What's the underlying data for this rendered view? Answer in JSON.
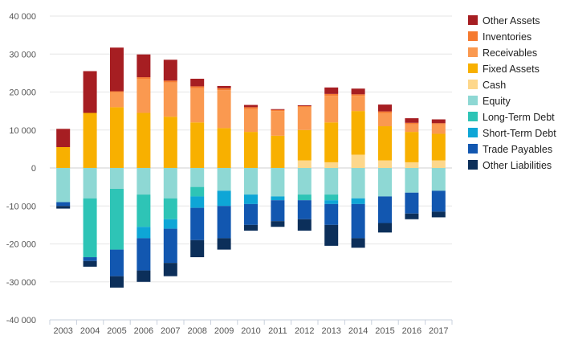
{
  "chart_data": {
    "type": "bar",
    "stacked": true,
    "title": "",
    "xlabel": "",
    "ylabel": "",
    "ylim": [
      -40000,
      40000
    ],
    "yticks": [
      -40000,
      -30000,
      -20000,
      -10000,
      0,
      10000,
      20000,
      30000,
      40000
    ],
    "ytick_labels": [
      "-40 000",
      "-30 000",
      "-20 000",
      "-10 000",
      "0",
      "10 000",
      "20 000",
      "30 000",
      "40 000"
    ],
    "grid": true,
    "legend_position": "right",
    "categories": [
      "2003",
      "2004",
      "2005",
      "2006",
      "2007",
      "2008",
      "2009",
      "2010",
      "2011",
      "2012",
      "2013",
      "2014",
      "2015",
      "2016",
      "2017"
    ],
    "series": [
      {
        "name": "Cash",
        "color": "#FDD78B",
        "values": [
          0,
          0,
          0,
          0,
          0,
          0,
          0,
          0,
          0,
          2000,
          1500,
          3500,
          2000,
          1500,
          2000
        ]
      },
      {
        "name": "Fixed Assets",
        "color": "#F8B000",
        "values": [
          5500,
          14500,
          16000,
          14500,
          13500,
          12000,
          10500,
          9500,
          8500,
          8000,
          10500,
          11500,
          9000,
          8000,
          7000
        ]
      },
      {
        "name": "Receivables",
        "color": "#FA9950",
        "values": [
          0,
          0,
          4000,
          9000,
          9000,
          9000,
          10000,
          6000,
          6500,
          6000,
          7000,
          4000,
          3500,
          2000,
          2500
        ]
      },
      {
        "name": "Inventories",
        "color": "#F57A30",
        "values": [
          0,
          0,
          200,
          400,
          500,
          500,
          500,
          500,
          300,
          300,
          500,
          400,
          400,
          400,
          300
        ]
      },
      {
        "name": "Other Assets",
        "color": "#A61E22",
        "values": [
          4800,
          11000,
          11500,
          6000,
          5500,
          2000,
          600,
          600,
          200,
          200,
          1700,
          1500,
          1800,
          1200,
          1000
        ]
      },
      {
        "name": "Equity",
        "color": "#8ED8D4",
        "values": [
          -9000,
          -8000,
          -5500,
          -7000,
          -8000,
          -5000,
          -6000,
          -7000,
          -7500,
          -7000,
          -7000,
          -8000,
          -7500,
          -6500,
          -6000
        ]
      },
      {
        "name": "Long-Term Debt",
        "color": "#2EC4B6",
        "values": [
          0,
          -15500,
          -16000,
          -8500,
          -5500,
          -2500,
          0,
          0,
          0,
          -1500,
          -1500,
          0,
          0,
          0,
          0
        ]
      },
      {
        "name": "Short-Term Debt",
        "color": "#0EA6D6",
        "values": [
          0,
          0,
          0,
          -3000,
          -2500,
          -3000,
          -4000,
          -2500,
          -1000,
          0,
          -1000,
          -1500,
          0,
          0,
          0
        ]
      },
      {
        "name": "Trade Payables",
        "color": "#1257B0",
        "values": [
          -1000,
          -1000,
          -7000,
          -8500,
          -9000,
          -8500,
          -8500,
          -5500,
          -5500,
          -5000,
          -5500,
          -9000,
          -7000,
          -5500,
          -5500
        ]
      },
      {
        "name": "Other Liabilities",
        "color": "#0C2F5A",
        "values": [
          -700,
          -1500,
          -3000,
          -3000,
          -3500,
          -4500,
          -3000,
          -1500,
          -1500,
          -3000,
          -5500,
          -2500,
          -2500,
          -1500,
          -1500
        ]
      }
    ],
    "legend_order": [
      "Other Assets",
      "Inventories",
      "Receivables",
      "Fixed Assets",
      "Cash",
      "Equity",
      "Long-Term Debt",
      "Short-Term Debt",
      "Trade Payables",
      "Other Liabilities"
    ]
  }
}
